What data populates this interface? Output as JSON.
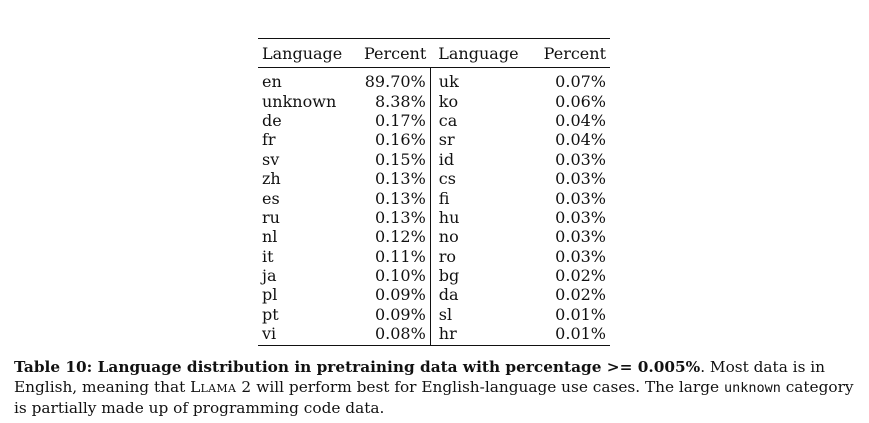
{
  "table": {
    "headers": [
      "Language",
      "Percent",
      "Language",
      "Percent"
    ],
    "rows": [
      [
        "en",
        "89.70%",
        "uk",
        "0.07%"
      ],
      [
        "unknown",
        "8.38%",
        "ko",
        "0.06%"
      ],
      [
        "de",
        "0.17%",
        "ca",
        "0.04%"
      ],
      [
        "fr",
        "0.16%",
        "sr",
        "0.04%"
      ],
      [
        "sv",
        "0.15%",
        "id",
        "0.03%"
      ],
      [
        "zh",
        "0.13%",
        "cs",
        "0.03%"
      ],
      [
        "es",
        "0.13%",
        "fi",
        "0.03%"
      ],
      [
        "ru",
        "0.13%",
        "hu",
        "0.03%"
      ],
      [
        "nl",
        "0.12%",
        "no",
        "0.03%"
      ],
      [
        "it",
        "0.11%",
        "ro",
        "0.03%"
      ],
      [
        "ja",
        "0.10%",
        "bg",
        "0.02%"
      ],
      [
        "pl",
        "0.09%",
        "da",
        "0.02%"
      ],
      [
        "pt",
        "0.09%",
        "sl",
        "0.01%"
      ],
      [
        "vi",
        "0.08%",
        "hr",
        "0.01%"
      ]
    ]
  },
  "caption": {
    "bold": "Table 10: Language distribution in pretraining data with percentage >= 0.005%",
    "after_bold": ". Most data is in English, meaning that ",
    "model_name": "Llama 2",
    "mid": " will perform best for English-language use cases. The large ",
    "code_term": "unknown",
    "end": " category is partially made up of programming code data."
  }
}
